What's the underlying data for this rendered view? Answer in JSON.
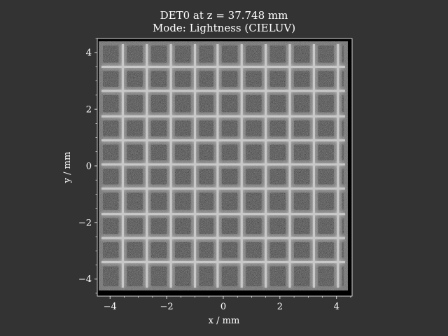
{
  "chart_data": {
    "type": "heatmap",
    "title": "DET0 at z = 37.748 mm",
    "subtitle": "Mode: Lightness (CIELUV)",
    "xlabel": "x / mm",
    "ylabel": "y / mm",
    "xlim": [
      -4.45,
      4.55
    ],
    "ylim": [
      -4.6,
      4.5
    ],
    "x_ticks": [
      -4,
      -2,
      0,
      2,
      4
    ],
    "y_ticks": [
      -4,
      -2,
      0,
      2,
      4
    ],
    "x_tick_labels": [
      "−4",
      "−2",
      "0",
      "2",
      "4"
    ],
    "y_tick_labels": [
      "−4",
      "−2",
      "0",
      "2",
      "4"
    ],
    "grid": false,
    "pattern": "square mesh grid spot (bright bars, dark square openings)",
    "vertical_bars_x": [
      -3.55,
      -2.7,
      -1.85,
      -1.0,
      -0.2,
      0.65,
      1.5,
      2.35,
      3.2,
      4.05
    ],
    "horizontal_bars_y": [
      3.5,
      2.65,
      1.75,
      0.9,
      0.05,
      -0.8,
      -1.7,
      -2.55,
      -3.4
    ],
    "spot_extent": {
      "x": [
        -4.4,
        4.4
      ],
      "y": [
        -4.4,
        4.4
      ]
    },
    "colors": {
      "background": "#333333",
      "bar": "#c8c8c8",
      "halo": "#5a5a5a",
      "hole": "#000000"
    }
  }
}
